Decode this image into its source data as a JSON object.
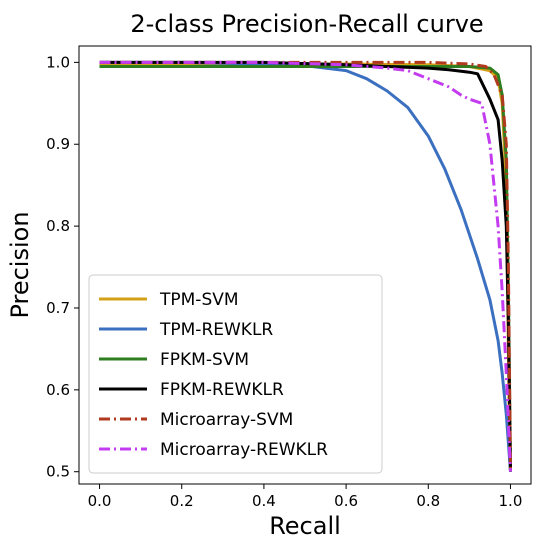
{
  "chart_data": {
    "type": "line",
    "title": "2-class Precision-Recall curve",
    "xlabel": "Recall",
    "ylabel": "Precision",
    "xlim": [
      -0.05,
      1.05
    ],
    "ylim": [
      0.485,
      1.02
    ],
    "xticks": [
      0.0,
      0.2,
      0.4,
      0.6,
      0.8,
      1.0
    ],
    "xtick_labels": [
      "0.0",
      "0.2",
      "0.4",
      "0.6",
      "0.8",
      "1.0"
    ],
    "yticks": [
      0.5,
      0.6,
      0.7,
      0.8,
      0.9,
      1.0
    ],
    "ytick_labels": [
      "0.5",
      "0.6",
      "0.7",
      "0.8",
      "0.9",
      "1.0"
    ],
    "grid": false,
    "legend_position": "lower-left",
    "series": [
      {
        "name": "TPM-SVM",
        "color": "#d4a017",
        "dash": "solid",
        "x": [
          0.0,
          0.3,
          0.6,
          0.8,
          0.9,
          0.95,
          0.97,
          0.98,
          0.99,
          0.995,
          0.998,
          1.0
        ],
        "y": [
          0.998,
          0.998,
          0.998,
          0.997,
          0.995,
          0.99,
          0.98,
          0.95,
          0.85,
          0.65,
          0.53,
          0.5
        ]
      },
      {
        "name": "TPM-REWKLR",
        "color": "#3b6fbf",
        "dash": "solid",
        "x": [
          0.0,
          0.2,
          0.4,
          0.5,
          0.6,
          0.65,
          0.7,
          0.75,
          0.8,
          0.84,
          0.88,
          0.92,
          0.95,
          0.97,
          0.98,
          0.99,
          1.0
        ],
        "y": [
          1.0,
          1.0,
          0.998,
          0.996,
          0.99,
          0.98,
          0.965,
          0.945,
          0.91,
          0.87,
          0.82,
          0.76,
          0.71,
          0.66,
          0.62,
          0.57,
          0.5
        ]
      },
      {
        "name": "FPKM-SVM",
        "color": "#2e7d1f",
        "dash": "solid",
        "x": [
          0.0,
          0.3,
          0.6,
          0.8,
          0.9,
          0.95,
          0.97,
          0.98,
          0.99,
          0.995,
          1.0
        ],
        "y": [
          0.995,
          0.995,
          0.995,
          0.995,
          0.995,
          0.993,
          0.985,
          0.96,
          0.88,
          0.72,
          0.5
        ]
      },
      {
        "name": "FPKM-REWKLR",
        "color": "#000000",
        "dash": "solid",
        "x": [
          0.0,
          0.4,
          0.6,
          0.7,
          0.8,
          0.85,
          0.9,
          0.92,
          0.95,
          0.97,
          0.98,
          0.99,
          0.995,
          1.0
        ],
        "y": [
          1.0,
          1.0,
          0.997,
          0.995,
          0.993,
          0.991,
          0.988,
          0.986,
          0.955,
          0.93,
          0.88,
          0.8,
          0.68,
          0.5
        ]
      },
      {
        "name": "Microarray-SVM",
        "color": "#b03a1e",
        "dash": "dashdot",
        "x": [
          0.0,
          0.3,
          0.6,
          0.8,
          0.9,
          0.94,
          0.96,
          0.98,
          0.99,
          0.995,
          1.0
        ],
        "y": [
          1.0,
          1.0,
          1.0,
          1.0,
          0.998,
          0.995,
          0.985,
          0.96,
          0.9,
          0.75,
          0.5
        ]
      },
      {
        "name": "Microarray-REWKLR",
        "color": "#c43cf0",
        "dash": "dashdot",
        "x": [
          0.0,
          0.4,
          0.6,
          0.7,
          0.75,
          0.8,
          0.85,
          0.88,
          0.9,
          0.93,
          0.95,
          0.96,
          0.97,
          0.98,
          0.99,
          1.0
        ],
        "y": [
          1.0,
          1.0,
          0.997,
          0.993,
          0.99,
          0.98,
          0.97,
          0.96,
          0.955,
          0.95,
          0.9,
          0.85,
          0.8,
          0.72,
          0.62,
          0.5
        ]
      }
    ]
  }
}
